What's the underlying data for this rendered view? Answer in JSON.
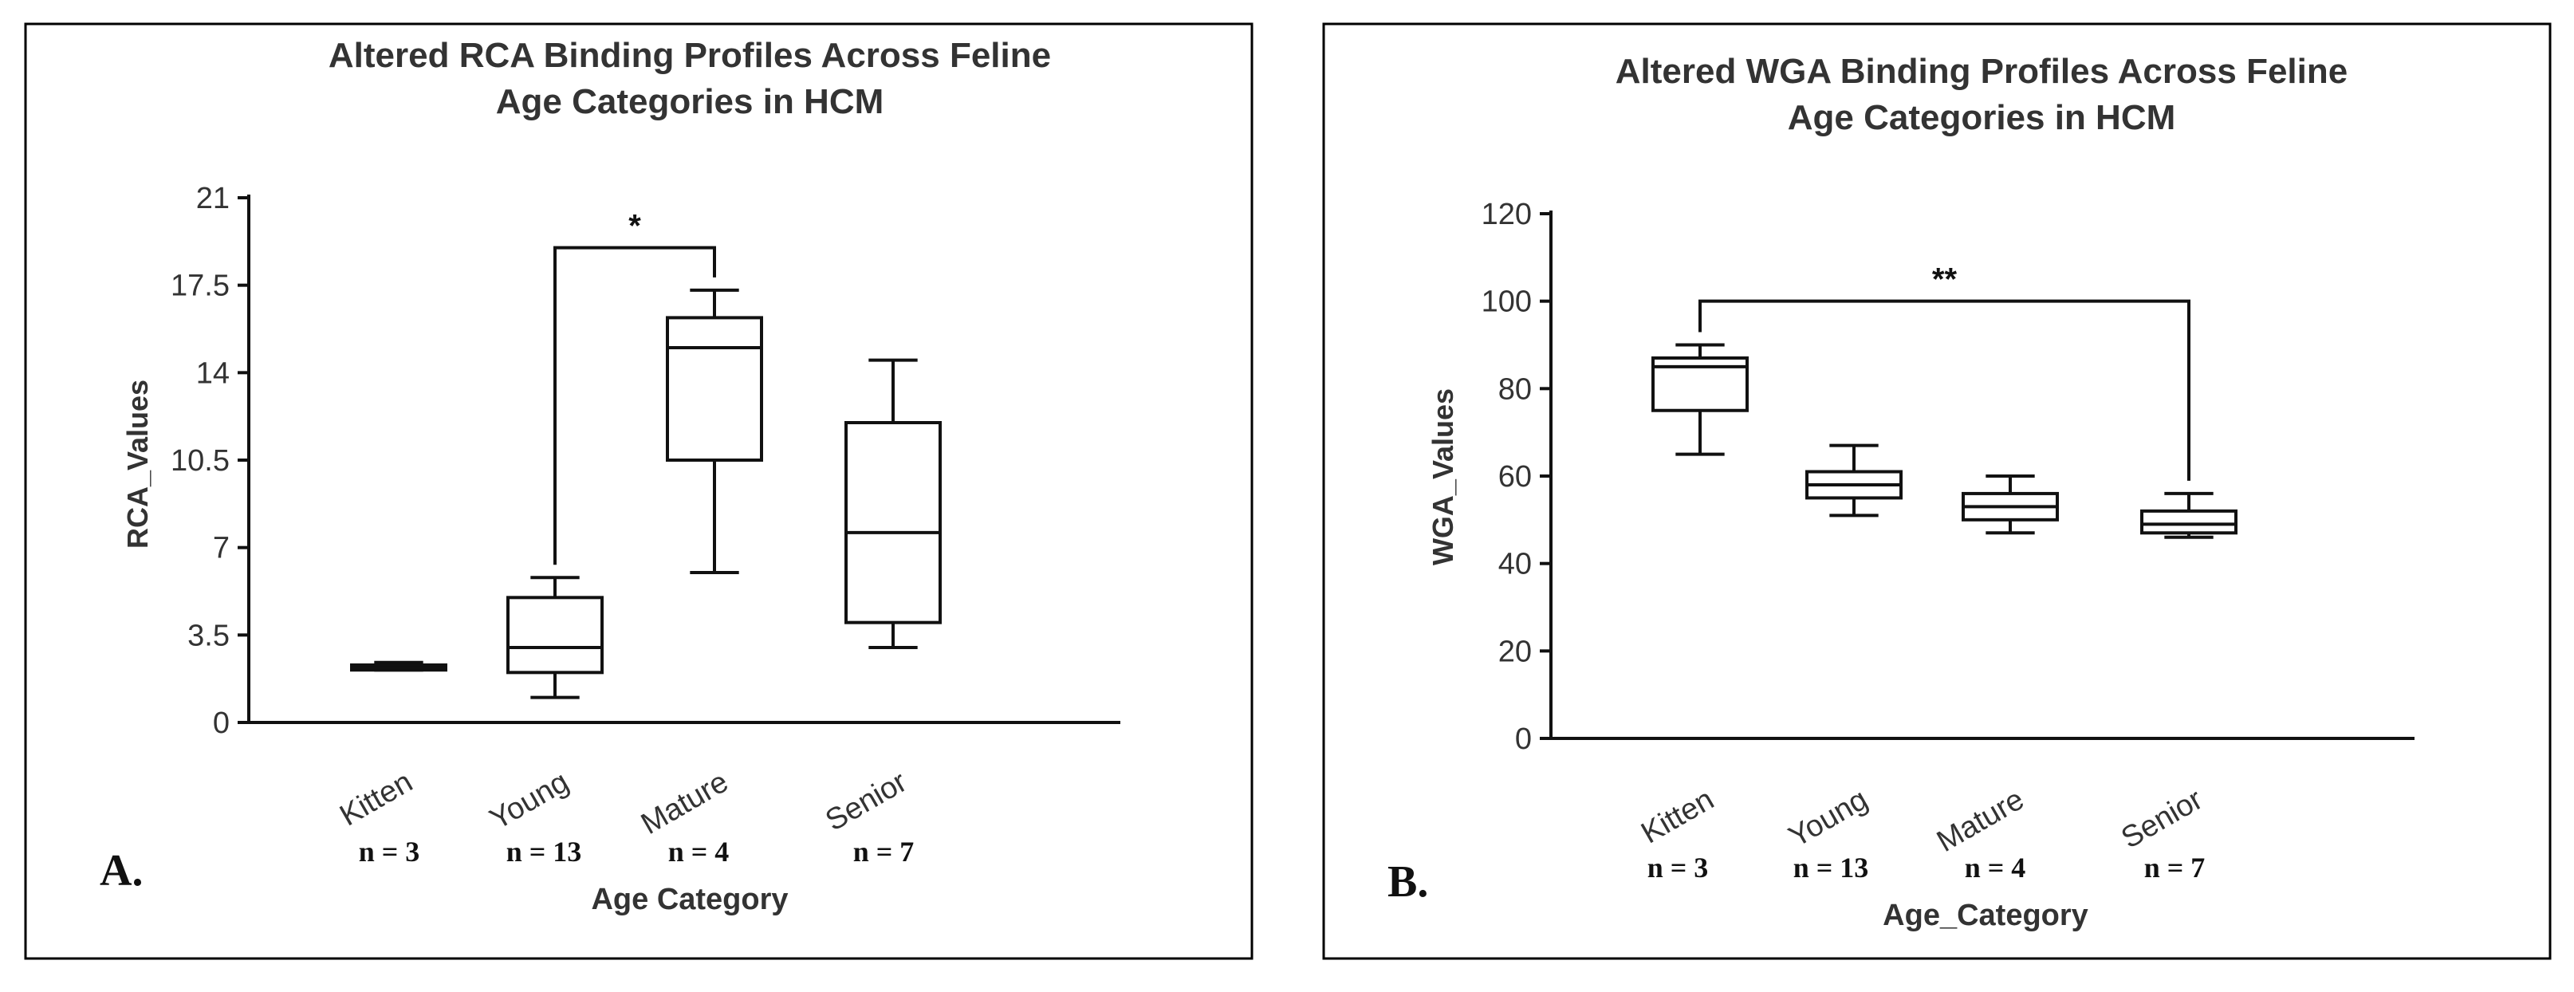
{
  "chart_data": [
    {
      "type": "box",
      "panel_label": "A.",
      "title": "Altered RCA Binding Profiles Across Feline Age Categories in HCM",
      "title_lines": [
        "Altered RCA Binding Profiles Across Feline",
        "Age Categories in HCM"
      ],
      "xlabel": "Age Category",
      "ylabel": "RCA_Values",
      "ylim": [
        0,
        21
      ],
      "yticks": [
        0,
        3.5,
        7,
        10.5,
        14,
        17.5,
        21
      ],
      "ytick_labels": [
        "0",
        "3.5",
        "7",
        "10.5",
        "14",
        "17.5",
        "21"
      ],
      "grid": false,
      "categories": [
        "Kitten",
        "Young",
        "Mature",
        "Senior"
      ],
      "n_labels": [
        "n = 3",
        "n = 13",
        "n = 4",
        "n = 7"
      ],
      "boxes": [
        {
          "min": 2.1,
          "q1": 2.1,
          "median": 2.2,
          "q3": 2.3,
          "max": 2.4
        },
        {
          "min": 1.0,
          "q1": 2.0,
          "median": 3.0,
          "q3": 5.0,
          "max": 5.8
        },
        {
          "min": 6.0,
          "q1": 10.5,
          "median": 15.0,
          "q3": 16.2,
          "max": 17.3
        },
        {
          "min": 3.0,
          "q1": 4.0,
          "median": 7.6,
          "q3": 12.0,
          "max": 14.5
        }
      ],
      "significance": [
        {
          "from": 1,
          "to": 2,
          "y": 19.0,
          "label": "*"
        }
      ]
    },
    {
      "type": "box",
      "panel_label": "B.",
      "title": "Altered WGA Binding Profiles Across Feline Age Categories in HCM",
      "title_lines": [
        "Altered WGA Binding Profiles Across Feline",
        "Age Categories in HCM"
      ],
      "xlabel": "Age_Category",
      "ylabel": "WGA_Values",
      "ylim": [
        0,
        120
      ],
      "yticks": [
        0,
        20,
        40,
        60,
        80,
        100,
        120
      ],
      "ytick_labels": [
        "0",
        "20",
        "40",
        "60",
        "80",
        "100",
        "120"
      ],
      "grid": false,
      "categories": [
        "Kitten",
        "Young",
        "Mature",
        "Senior"
      ],
      "n_labels": [
        "n = 3",
        "n = 13",
        "n = 4",
        "n = 7"
      ],
      "boxes": [
        {
          "min": 65,
          "q1": 75,
          "median": 85,
          "q3": 87,
          "max": 90
        },
        {
          "min": 51,
          "q1": 55,
          "median": 58,
          "q3": 61,
          "max": 67
        },
        {
          "min": 47,
          "q1": 50,
          "median": 53,
          "q3": 56,
          "max": 60
        },
        {
          "min": 46,
          "q1": 47,
          "median": 49,
          "q3": 52,
          "max": 56
        }
      ],
      "significance": [
        {
          "from": 0,
          "to": 3,
          "y": 100,
          "label": "**"
        }
      ]
    }
  ]
}
